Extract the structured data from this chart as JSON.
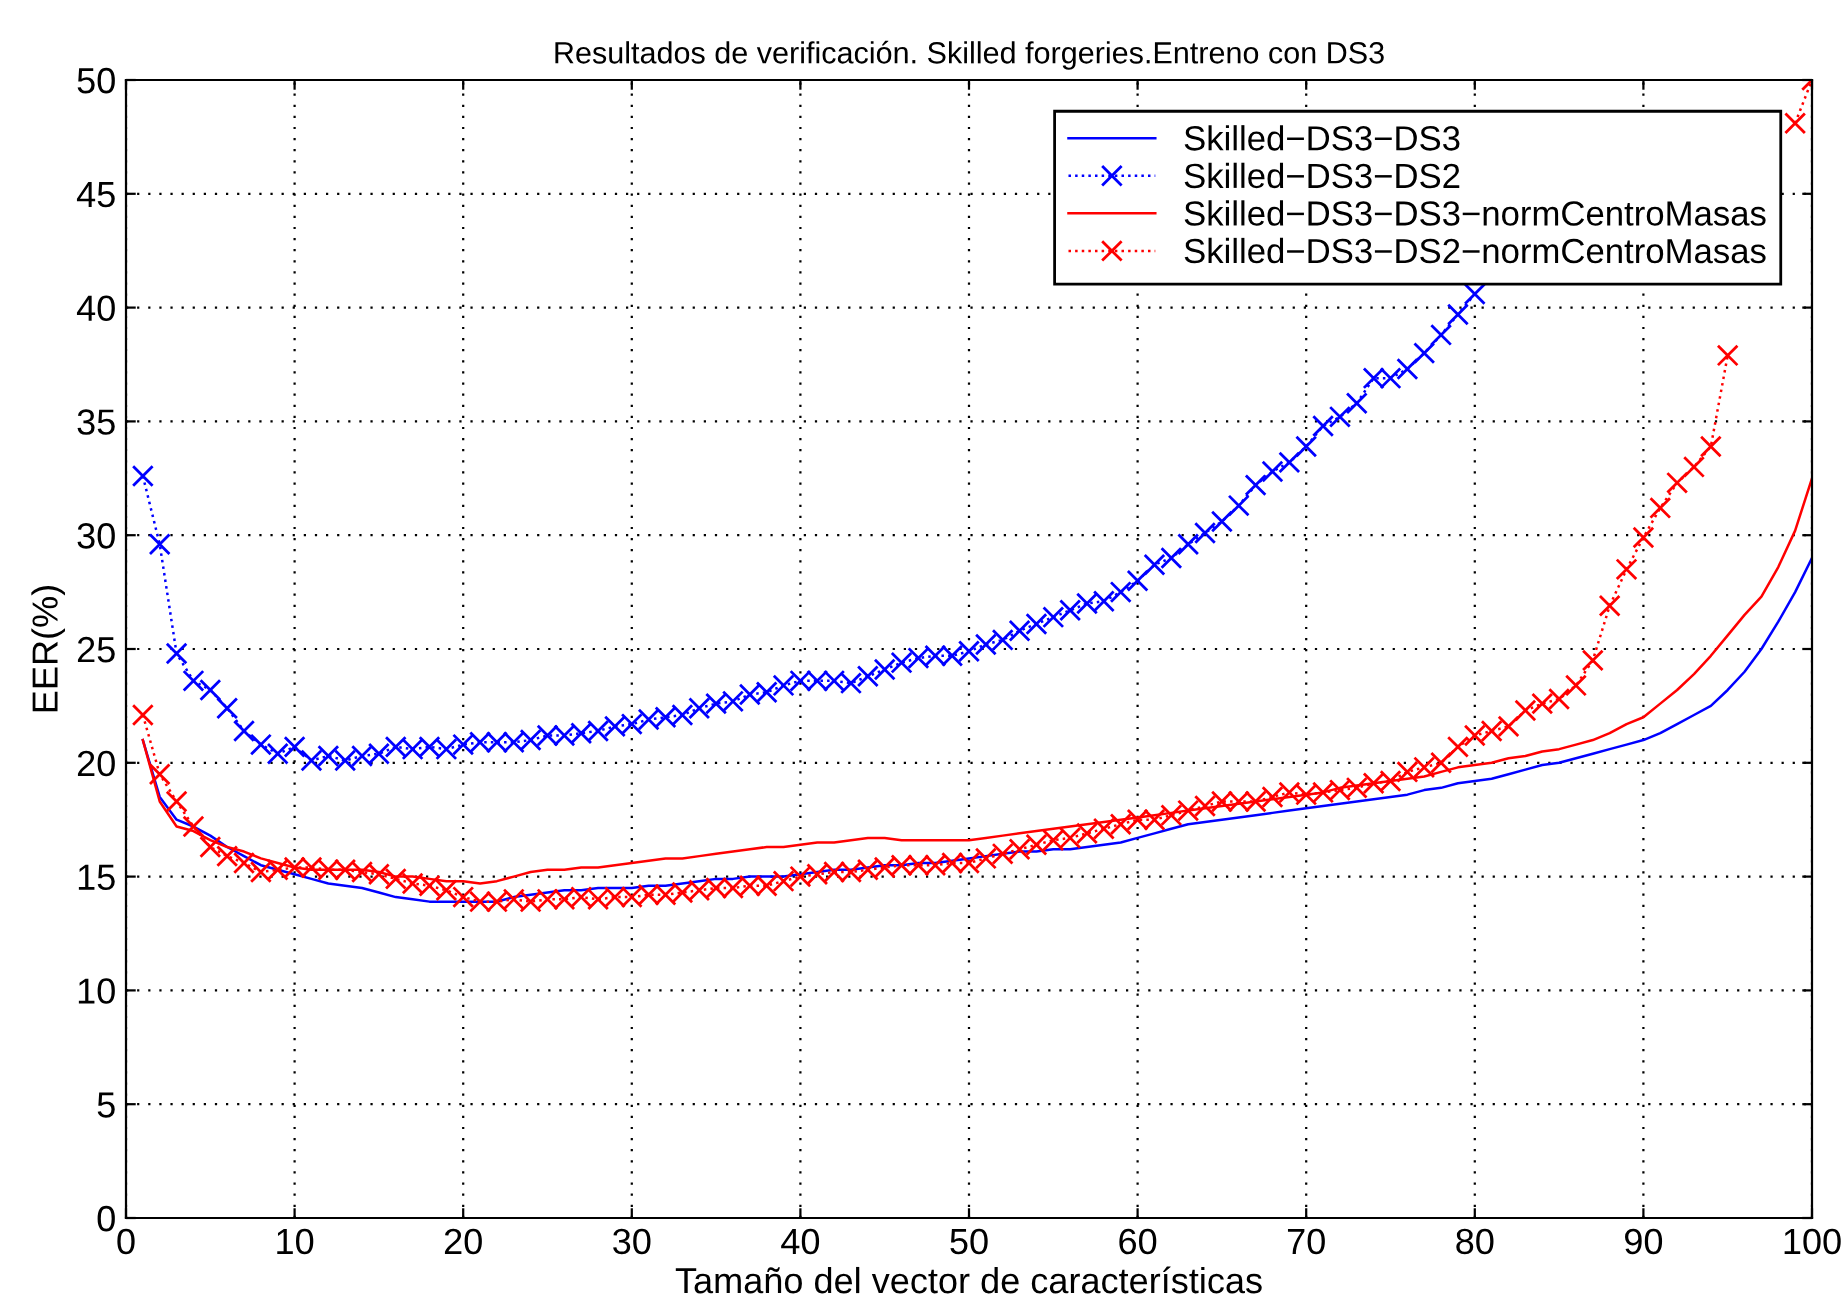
{
  "chart_data": {
    "type": "line",
    "title": "Resultados de verificación. Skilled forgeries.Entreno con DS3",
    "xlabel": "Tamaño del vector de características",
    "ylabel": "EER(%)",
    "x": [
      1,
      2,
      3,
      4,
      5,
      6,
      7,
      8,
      9,
      10,
      11,
      12,
      13,
      14,
      15,
      16,
      17,
      18,
      19,
      20,
      21,
      22,
      23,
      24,
      25,
      26,
      27,
      28,
      29,
      30,
      31,
      32,
      33,
      34,
      35,
      36,
      37,
      38,
      39,
      40,
      41,
      42,
      43,
      44,
      45,
      46,
      47,
      48,
      49,
      50,
      51,
      52,
      53,
      54,
      55,
      56,
      57,
      58,
      59,
      60,
      61,
      62,
      63,
      64,
      65,
      66,
      67,
      68,
      69,
      70,
      71,
      72,
      73,
      74,
      75,
      76,
      77,
      78,
      79,
      80,
      81,
      82,
      83,
      84,
      85,
      86,
      87,
      88,
      89,
      90,
      91,
      92,
      93,
      94,
      95,
      96,
      97,
      98,
      99,
      100
    ],
    "series": [
      {
        "name": "Skilled−DS3−DS3",
        "color": "#0000ff",
        "marker": "none",
        "line_style": "solid",
        "values": [
          21,
          18.5,
          17.5,
          17.2,
          16.8,
          16.3,
          15.9,
          15.5,
          15.3,
          15.1,
          14.9,
          14.7,
          14.6,
          14.5,
          14.3,
          14.1,
          14.0,
          13.9,
          13.9,
          13.9,
          13.9,
          13.9,
          14.1,
          14.2,
          14.3,
          14.4,
          14.4,
          14.5,
          14.5,
          14.5,
          14.6,
          14.6,
          14.7,
          14.8,
          14.9,
          14.9,
          15.0,
          15.0,
          15.0,
          15.1,
          15.2,
          15.3,
          15.3,
          15.4,
          15.5,
          15.5,
          15.6,
          15.6,
          15.7,
          15.8,
          15.9,
          16.0,
          16.1,
          16.1,
          16.2,
          16.2,
          16.3,
          16.4,
          16.5,
          16.7,
          16.9,
          17.1,
          17.3,
          17.4,
          17.5,
          17.6,
          17.7,
          17.8,
          17.9,
          18.0,
          18.1,
          18.2,
          18.3,
          18.4,
          18.5,
          18.6,
          18.8,
          18.9,
          19.1,
          19.2,
          19.3,
          19.5,
          19.7,
          19.9,
          20.0,
          20.2,
          20.4,
          20.6,
          20.8,
          21.0,
          21.3,
          21.7,
          22.1,
          22.5,
          23.2,
          24.0,
          25.0,
          26.2,
          27.5,
          29.0
        ]
      },
      {
        "name": "Skilled−DS3−DS2",
        "color": "#0000ff",
        "marker": "cross",
        "line_style": "dotted",
        "values": [
          32.6,
          29.6,
          24.8,
          23.6,
          23.2,
          22.4,
          21.4,
          20.8,
          20.4,
          20.7,
          20.1,
          20.3,
          20.1,
          20.3,
          20.4,
          20.7,
          20.6,
          20.7,
          20.6,
          20.8,
          20.9,
          20.9,
          20.9,
          21.0,
          21.2,
          21.2,
          21.3,
          21.4,
          21.6,
          21.7,
          21.9,
          22.0,
          22.1,
          22.4,
          22.6,
          22.7,
          23.0,
          23.1,
          23.4,
          23.6,
          23.6,
          23.6,
          23.5,
          23.8,
          24.1,
          24.4,
          24.6,
          24.7,
          24.7,
          24.9,
          25.2,
          25.4,
          25.8,
          26.1,
          26.4,
          26.7,
          27.0,
          27.1,
          27.5,
          28.0,
          28.7,
          29.0,
          29.6,
          30.1,
          30.6,
          31.3,
          32.2,
          32.8,
          33.2,
          33.9,
          34.8,
          35.2,
          35.8,
          36.9,
          36.9,
          37.3,
          38.0,
          38.8,
          39.7,
          40.6,
          null,
          null,
          null,
          null,
          null,
          null,
          null,
          null,
          null,
          null,
          null,
          null,
          null,
          null,
          null,
          null,
          null,
          null,
          null,
          null
        ]
      },
      {
        "name": "Skilled−DS3−DS3−normCentroMasas",
        "color": "#ff0000",
        "marker": "none",
        "line_style": "solid",
        "values": [
          21,
          18.3,
          17.2,
          17.0,
          16.6,
          16.3,
          16.1,
          15.8,
          15.6,
          15.4,
          15.3,
          15.3,
          15.3,
          15.3,
          15.2,
          15.0,
          15.0,
          14.9,
          14.8,
          14.8,
          14.7,
          14.8,
          15.0,
          15.2,
          15.3,
          15.3,
          15.4,
          15.4,
          15.5,
          15.6,
          15.7,
          15.8,
          15.8,
          15.9,
          16.0,
          16.1,
          16.2,
          16.3,
          16.3,
          16.4,
          16.5,
          16.5,
          16.6,
          16.7,
          16.7,
          16.6,
          16.6,
          16.6,
          16.6,
          16.6,
          16.7,
          16.8,
          16.9,
          17.0,
          17.1,
          17.2,
          17.3,
          17.4,
          17.5,
          17.6,
          17.7,
          17.8,
          17.9,
          18.0,
          18.1,
          18.2,
          18.3,
          18.4,
          18.5,
          18.6,
          18.7,
          18.9,
          19.0,
          19.1,
          19.2,
          19.3,
          19.4,
          19.6,
          19.8,
          19.9,
          20.0,
          20.2,
          20.3,
          20.5,
          20.6,
          20.8,
          21.0,
          21.3,
          21.7,
          22.0,
          22.6,
          23.2,
          23.9,
          24.7,
          25.6,
          26.5,
          27.3,
          28.6,
          30.2,
          32.5
        ]
      },
      {
        "name": "Skilled−DS3−DS2−normCentroMasas",
        "color": "#ff0000",
        "marker": "cross",
        "line_style": "dotted",
        "values": [
          22.1,
          19.5,
          18.3,
          17.2,
          16.3,
          15.9,
          15.6,
          15.2,
          15.3,
          15.4,
          15.4,
          15.3,
          15.3,
          15.2,
          15.1,
          14.9,
          14.7,
          14.6,
          14.4,
          14.1,
          13.9,
          13.9,
          14.0,
          13.9,
          14.0,
          14.0,
          14.1,
          14.0,
          14.1,
          14.1,
          14.2,
          14.2,
          14.3,
          14.4,
          14.5,
          14.5,
          14.6,
          14.6,
          14.8,
          15.0,
          15.1,
          15.2,
          15.2,
          15.3,
          15.4,
          15.5,
          15.5,
          15.5,
          15.6,
          15.6,
          15.8,
          16.0,
          16.2,
          16.4,
          16.6,
          16.7,
          16.9,
          17.1,
          17.3,
          17.5,
          17.5,
          17.7,
          17.9,
          18.1,
          18.3,
          18.3,
          18.3,
          18.5,
          18.7,
          18.6,
          18.7,
          18.8,
          18.9,
          19.1,
          19.2,
          19.6,
          19.8,
          20.0,
          20.7,
          21.2,
          21.4,
          21.6,
          22.3,
          22.6,
          22.8,
          23.4,
          24.5,
          26.9,
          28.5,
          29.9,
          31.2,
          32.3,
          33.0,
          33.9,
          37.9,
          null,
          null,
          null,
          48.1,
          50
        ]
      }
    ],
    "xlim": [
      0,
      100
    ],
    "xticks": [
      0,
      10,
      20,
      30,
      40,
      50,
      60,
      70,
      80,
      90,
      100
    ],
    "ylim": [
      0,
      50
    ],
    "yticks": [
      0,
      5,
      10,
      15,
      20,
      25,
      30,
      35,
      40,
      45,
      50
    ],
    "grid": true,
    "legend": "top right"
  }
}
